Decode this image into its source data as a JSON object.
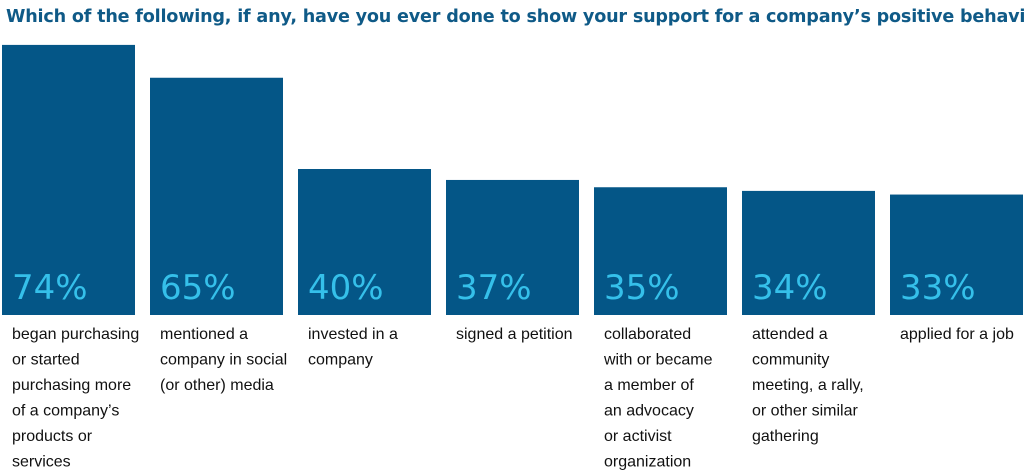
{
  "chart_data": {
    "type": "bar",
    "title": "Which of the following, if any, have you ever done to show your support for a company’s positive behavior?",
    "categories": [
      "began purchasing or started purchasing more of a company’s products or services",
      "mentioned a company in social (or other) media",
      "invested in a company",
      "signed a petition",
      "collaborated with or became a member of an advocacy or activist organization",
      "attended a community meeting, a rally, or other similar gathering",
      "applied for a job"
    ],
    "category_lines": [
      [
        "began purchasing",
        "or started",
        "purchasing more",
        "of a company’s",
        "products or",
        "services"
      ],
      [
        "mentioned a",
        "company in social",
        "(or other) media"
      ],
      [
        "invested in a",
        "company"
      ],
      [
        "signed a petition"
      ],
      [
        "collaborated",
        "with or became",
        "a member of",
        "an advocacy",
        "or activist",
        "organization"
      ],
      [
        "attended a",
        "community",
        "meeting, a rally,",
        "or other similar",
        "gathering"
      ],
      [
        "applied for a job"
      ]
    ],
    "values": [
      74,
      65,
      40,
      37,
      35,
      34,
      33
    ],
    "value_labels": [
      "74%",
      "65%",
      "40%",
      "37%",
      "35%",
      "34%",
      "33%"
    ],
    "ylim": [
      0,
      100
    ],
    "xlabel": "",
    "ylabel": "",
    "grid": false,
    "colors": {
      "bar": "#045687",
      "value_label": "#35c0ea",
      "title": "#0f5a87",
      "category_label": "#111111"
    }
  }
}
